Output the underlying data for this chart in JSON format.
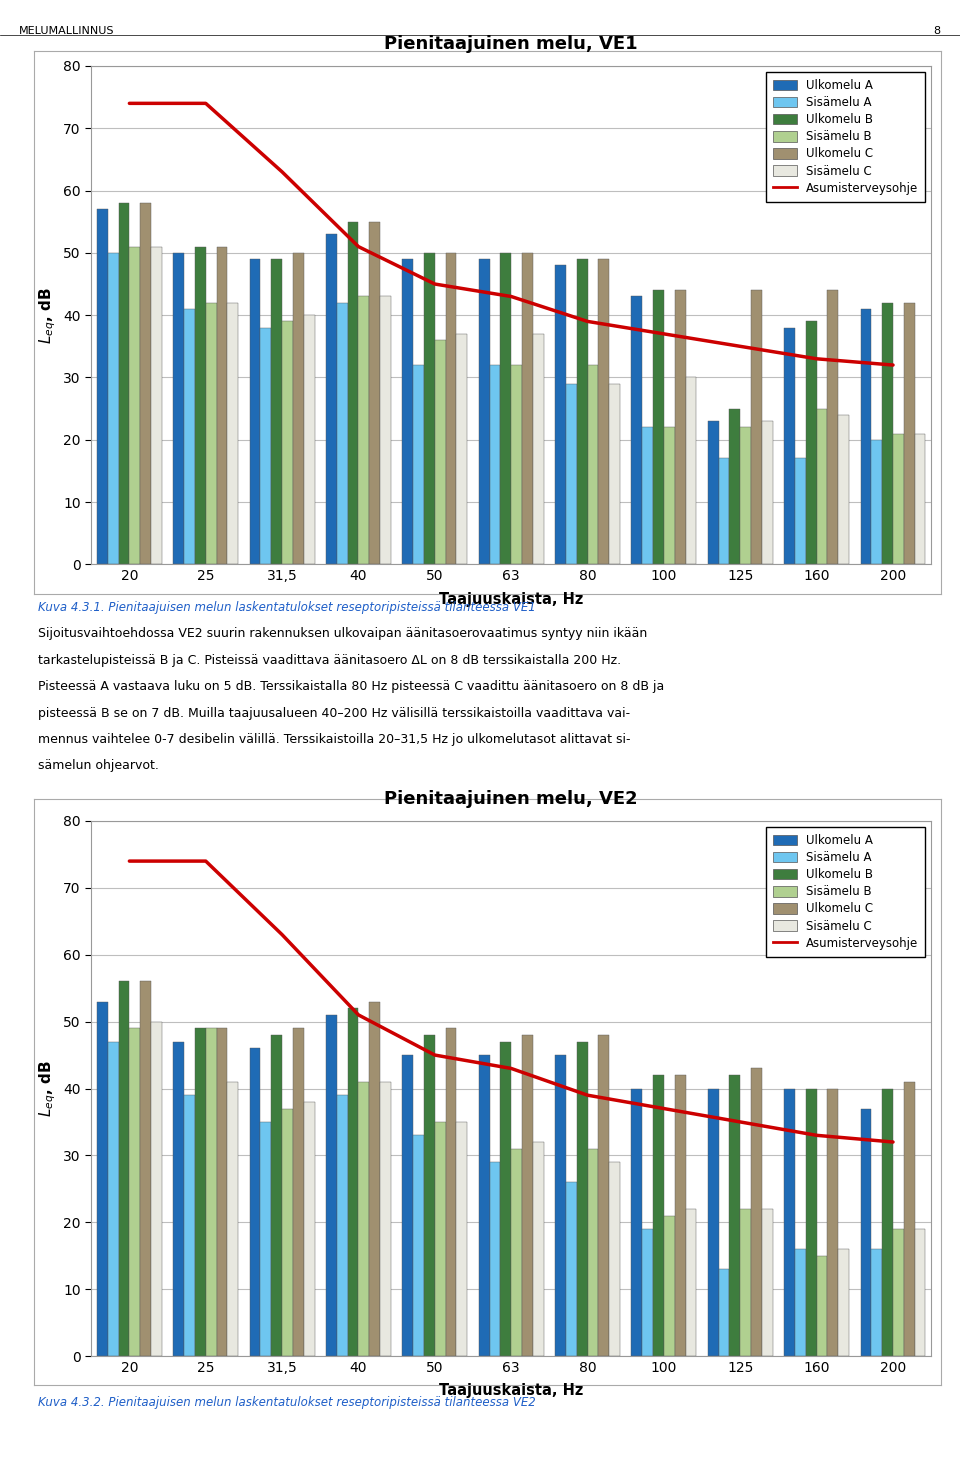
{
  "title1": "Pienitaajuinen melu, VE1",
  "title2": "Pienitaajuinen melu, VE2",
  "xlabel": "Taajuuskaista, Hz",
  "ylabel": "Lₑⁱ, dB",
  "frequencies": [
    "20",
    "25",
    "31,5",
    "40",
    "50",
    "63",
    "80",
    "100",
    "125",
    "160",
    "200"
  ],
  "freq_numeric": [
    20,
    25,
    31.5,
    40,
    50,
    63,
    80,
    100,
    125,
    160,
    200
  ],
  "bar_colors": [
    "#1F6BB5",
    "#6EC6F0",
    "#3E7D3E",
    "#B0D090",
    "#A09070",
    "#E8E8E0"
  ],
  "legend_labels": [
    "Ulkomelu A",
    "Sisämelu A",
    "Ulkomelu B",
    "Sisämelu B",
    "Ulkomelu C",
    "Sisämelu C",
    "Asumisterveysohje"
  ],
  "ve1_data": {
    "ulkomelu_A": [
      57,
      50,
      49,
      53,
      49,
      49,
      48,
      43,
      23,
      38,
      41
    ],
    "sisamelu_A": [
      50,
      41,
      38,
      42,
      32,
      32,
      29,
      22,
      17,
      17,
      20
    ],
    "ulkomelu_B": [
      58,
      51,
      49,
      55,
      50,
      50,
      49,
      44,
      25,
      39,
      42
    ],
    "sisamelu_B": [
      51,
      42,
      39,
      43,
      36,
      32,
      32,
      22,
      22,
      25,
      21
    ],
    "ulkomelu_C": [
      58,
      51,
      50,
      55,
      50,
      50,
      49,
      44,
      44,
      44,
      42
    ],
    "sisamelu_C": [
      51,
      42,
      40,
      43,
      37,
      37,
      29,
      30,
      23,
      24,
      21
    ],
    "asumisterveysohje": [
      74,
      74,
      63,
      51,
      45,
      43,
      39,
      37,
      35,
      33,
      32
    ]
  },
  "ve2_data": {
    "ulkomelu_A": [
      53,
      47,
      46,
      51,
      45,
      45,
      45,
      40,
      40,
      40,
      37
    ],
    "sisamelu_A": [
      47,
      39,
      35,
      39,
      33,
      29,
      26,
      19,
      13,
      16,
      16
    ],
    "ulkomelu_B": [
      56,
      49,
      48,
      52,
      48,
      47,
      47,
      42,
      42,
      40,
      40
    ],
    "sisamelu_B": [
      49,
      49,
      37,
      41,
      35,
      31,
      31,
      21,
      22,
      15,
      19
    ],
    "ulkomelu_C": [
      56,
      49,
      49,
      53,
      49,
      48,
      48,
      42,
      43,
      40,
      41
    ],
    "sisamelu_C": [
      50,
      41,
      38,
      41,
      35,
      32,
      29,
      22,
      22,
      16,
      19
    ],
    "asumisterveysohje": [
      74,
      74,
      63,
      51,
      45,
      43,
      39,
      37,
      35,
      33,
      32
    ]
  },
  "ylim": [
    0,
    80
  ],
  "yticks": [
    0,
    10,
    20,
    30,
    40,
    50,
    60,
    70,
    80
  ],
  "header_text": "MELUMALLINNUS",
  "page_number": "8",
  "caption1": "Kuva 4.3.1. Pienitaajuisen melun laskentatulokset reseptoripisteissä tilanteessa VE1",
  "caption2": "Kuva 4.3.2. Pienitaajuisen melun laskentatulokset reseptoripisteissä tilanteessa VE2",
  "body_text": "Sijoitusvaihtoehdossa VE2 suurin rakennuksen ulkovaipan äänitasoerovaatimus syntyy niin ikään tarkastelupisteissä B ja C. Pisteissä vaadittava äänitasoero ΔL on 8 dB terssikaistalla 200 Hz. Pisteessä A vastaava luku on 5 dB. Terssikaistalla 80 Hz pisteessä C vaadittu äänitasoero on 8 dB ja pisteessä B se on 7 dB. Muilla taajuusalueen 40–200 Hz välisillä terssikaistoilla vaadittava vaimennus vaihtelee 0-7 desibelin välillä. Terssikaistoilla 20–31,5 Hz jo ulkomelutasot alittavat sisämelun ohjearvot.",
  "background_color": "#FFFFFF",
  "chart_background": "#FFFFFF",
  "grid_color": "#BEBEBE",
  "chart_border_color": "#AAAAAA",
  "asumisterveysohje_color": "#CC0000",
  "asumisterveysohje_linewidth": 2.5,
  "bar_edge_color": "#555555",
  "bar_edge_width": 0.3
}
